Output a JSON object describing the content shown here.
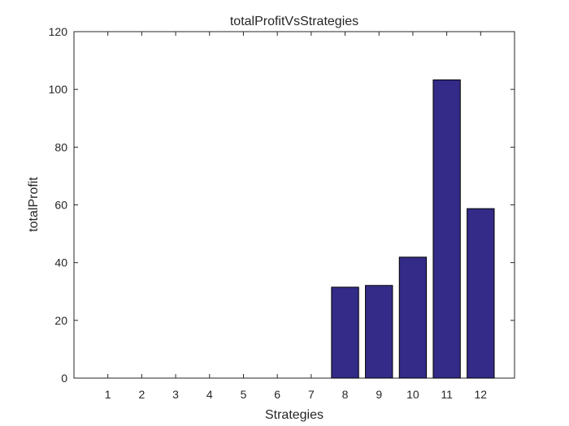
{
  "chart_data": {
    "type": "bar",
    "title": "totalProfitVsStrategies",
    "xlabel": "Strategies",
    "ylabel": "totalProfit",
    "categories": [
      "1",
      "2",
      "3",
      "4",
      "5",
      "6",
      "7",
      "8",
      "9",
      "10",
      "11",
      "12"
    ],
    "values": [
      0,
      0,
      0,
      0,
      0,
      0,
      0,
      31.5,
      32.1,
      41.9,
      103.3,
      58.7
    ],
    "ylim": [
      0,
      120
    ],
    "xlim": [
      0,
      13
    ],
    "yticks": [
      0,
      20,
      40,
      60,
      80,
      100,
      120
    ],
    "grid": false,
    "bar_color": "#332b87",
    "axis_color": "#262626"
  }
}
